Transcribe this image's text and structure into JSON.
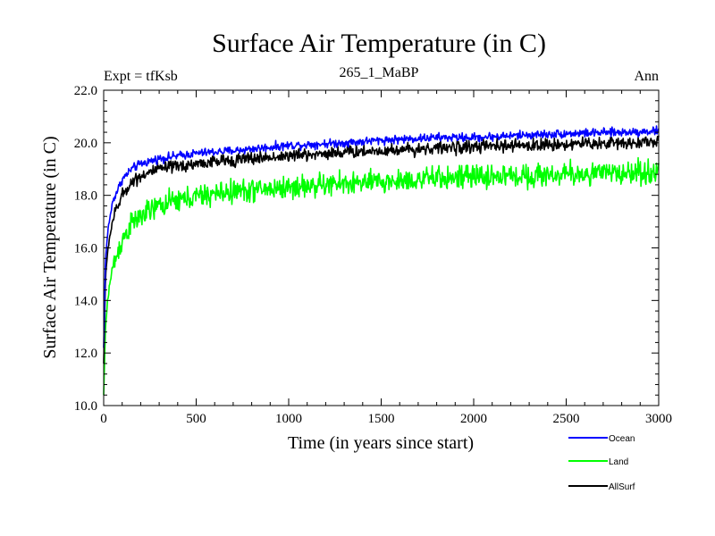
{
  "chart_data": {
    "type": "line",
    "title": "Surface Air Temperature (in C)",
    "subtitle": "265_1_MaBP",
    "left_label": "Expt = tfKsb",
    "right_label": "Ann",
    "xlabel": "Time (in years since start)",
    "ylabel": "Surface Air Temperature (in C)",
    "xlim": [
      0,
      3000
    ],
    "ylim": [
      10.0,
      22.0
    ],
    "x_ticks": [
      0,
      500,
      1000,
      1500,
      2000,
      2500,
      3000
    ],
    "x_tick_labels": [
      "0",
      "500",
      "1000",
      "1500",
      "2000",
      "2500",
      "3000"
    ],
    "y_ticks": [
      10,
      12,
      14,
      16,
      18,
      20,
      22
    ],
    "y_tick_labels": [
      "10.0",
      "12.0",
      "14.0",
      "16.0",
      "18.0",
      "20.0",
      "22.0"
    ],
    "grid": false,
    "legend_position": "bottom-right, below plot",
    "series": [
      {
        "name": "Ocean",
        "color": "#0000ff",
        "x": [
          0,
          10,
          25,
          50,
          100,
          150,
          200,
          300,
          400,
          500,
          700,
          1000,
          1300,
          1500,
          1800,
          2000,
          2300,
          2500,
          2800,
          3000
        ],
        "values": [
          12.2,
          15.6,
          16.8,
          17.8,
          18.6,
          19.0,
          19.2,
          19.4,
          19.5,
          19.6,
          19.7,
          19.9,
          20.0,
          20.1,
          20.2,
          20.2,
          20.3,
          20.35,
          20.4,
          20.45
        ],
        "noise": 0.08
      },
      {
        "name": "Land",
        "color": "#00ff00",
        "x": [
          0,
          10,
          25,
          50,
          100,
          150,
          200,
          300,
          400,
          500,
          700,
          1000,
          1300,
          1500,
          1800,
          2000,
          2300,
          2500,
          2800,
          3000
        ],
        "values": [
          10.4,
          13.0,
          14.3,
          15.3,
          16.3,
          16.9,
          17.2,
          17.6,
          17.8,
          17.95,
          18.15,
          18.3,
          18.45,
          18.5,
          18.65,
          18.7,
          18.75,
          18.8,
          18.85,
          18.9
        ],
        "noise": 0.22
      },
      {
        "name": "AllSurf",
        "color": "#000000",
        "x": [
          0,
          10,
          25,
          50,
          100,
          150,
          200,
          300,
          400,
          500,
          700,
          1000,
          1300,
          1500,
          1800,
          2000,
          2300,
          2500,
          2800,
          3000
        ],
        "values": [
          11.6,
          14.9,
          16.1,
          17.1,
          18.0,
          18.5,
          18.75,
          19.0,
          19.1,
          19.2,
          19.35,
          19.5,
          19.65,
          19.7,
          19.8,
          19.85,
          19.9,
          19.95,
          20.0,
          20.05
        ],
        "noise": 0.12
      }
    ]
  }
}
